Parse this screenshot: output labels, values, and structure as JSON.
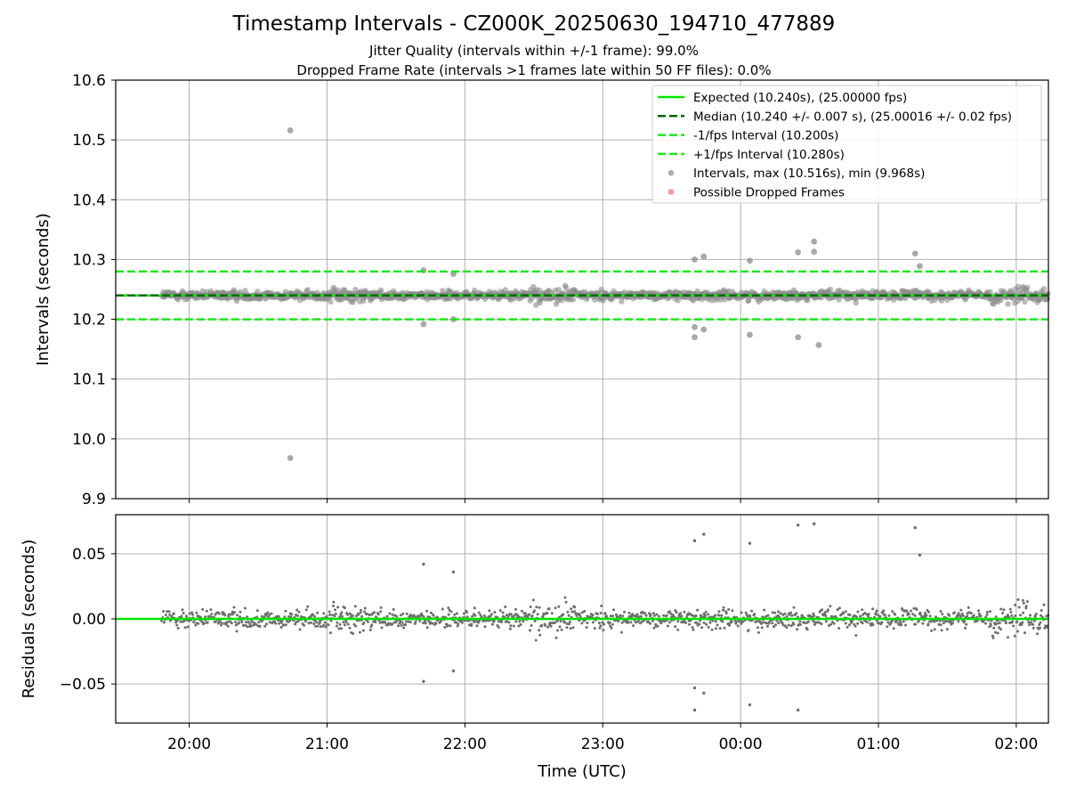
{
  "figure": {
    "title": "Timestamp Intervals - CZ000K_20250630_194710_477889",
    "subtitle_lines": [
      "Jitter Quality (intervals within +/-1 frame): 99.0%",
      "Dropped Frame Rate (intervals >1 frames late within 50 FF files): 0.0%"
    ]
  },
  "chart_data": [
    {
      "type": "scatter",
      "panel": "top",
      "ylabel": "Intervals (seconds)",
      "xlabel": "",
      "ylim": [
        9.9,
        10.6
      ],
      "yticks": [
        "10.6",
        "10.5",
        "10.4",
        "10.3",
        "10.2",
        "10.1",
        "10.0",
        "9.9"
      ],
      "xlim": [
        "19:28",
        "02:14"
      ],
      "grid": true,
      "legend_placement": "top-right",
      "reference_lines": [
        {
          "name": "Expected (10.240s), (25.00000 fps)",
          "y": 10.24,
          "style": "solid",
          "color": "#00e600"
        },
        {
          "name": "Median (10.240 +/- 0.007 s), (25.00016 +/- 0.02 fps)",
          "y": 10.24,
          "style": "dashed",
          "color": "#006400"
        },
        {
          "name": "-1/fps Interval (10.200s)",
          "y": 10.2,
          "style": "dashed",
          "color": "#1ee61e"
        },
        {
          "name": "+1/fps Interval (10.280s)",
          "y": 10.28,
          "style": "dashed",
          "color": "#1ee61e"
        }
      ],
      "series": [
        {
          "name": "Intervals, max (10.516s), min (9.968s)",
          "color": "#8c8c8c",
          "time_range": [
            "19:48",
            "02:14"
          ],
          "center": 10.24,
          "notable_points": [
            {
              "x": "20:44",
              "y": 10.516
            },
            {
              "x": "20:44",
              "y": 9.968
            },
            {
              "x": "23:40",
              "y": 10.3
            },
            {
              "x": "23:44",
              "y": 10.305
            },
            {
              "x": "23:40",
              "y": 10.187
            },
            {
              "x": "23:40",
              "y": 10.17
            },
            {
              "x": "23:44",
              "y": 10.183
            },
            {
              "x": "00:04",
              "y": 10.298
            },
            {
              "x": "00:04",
              "y": 10.174
            },
            {
              "x": "00:25",
              "y": 10.312
            },
            {
              "x": "00:32",
              "y": 10.33
            },
            {
              "x": "00:32",
              "y": 10.313
            },
            {
              "x": "00:25",
              "y": 10.17
            },
            {
              "x": "00:34",
              "y": 10.157
            },
            {
              "x": "01:16",
              "y": 10.31
            },
            {
              "x": "01:18",
              "y": 10.289
            },
            {
              "x": "21:42",
              "y": 10.282
            },
            {
              "x": "21:55",
              "y": 10.276
            },
            {
              "x": "21:42",
              "y": 10.192
            },
            {
              "x": "21:55",
              "y": 10.2
            }
          ]
        },
        {
          "name": "Possible Dropped Frames",
          "color": "#f07070",
          "points": []
        }
      ]
    },
    {
      "type": "scatter",
      "panel": "bottom",
      "ylabel": "Residuals (seconds)",
      "xlabel": "Time (UTC)",
      "ylim": [
        -0.08,
        0.08
      ],
      "yticks": [
        "0.05",
        "0.00",
        "−0.05"
      ],
      "xticks": [
        "20:00",
        "21:00",
        "22:00",
        "23:00",
        "00:00",
        "01:00",
        "02:00"
      ],
      "grid": true,
      "reference_line": {
        "y": 0.0,
        "color": "#00e600"
      },
      "series": [
        {
          "name": "",
          "color": "#6e6e6e",
          "time_range": [
            "19:48",
            "02:14"
          ],
          "center": 0.0
        }
      ]
    }
  ]
}
